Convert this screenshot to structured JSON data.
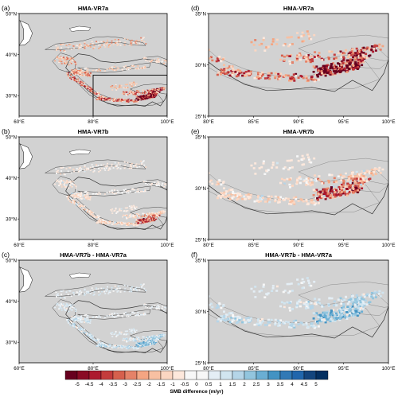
{
  "figure": {
    "colorbar": {
      "title": "SMB difference (m/yr)",
      "ticks": [
        "-5",
        "-4.5",
        "-4",
        "-3.5",
        "-3",
        "-2.5",
        "-2",
        "-1.5",
        "-1",
        "-0.5",
        "0",
        "0.5",
        "1",
        "1.5",
        "2",
        "2.5",
        "3",
        "3.5",
        "4",
        "4.5",
        "5"
      ],
      "colors": [
        "#67001f",
        "#8a0b25",
        "#ad1a2e",
        "#c43c3c",
        "#d6604d",
        "#e58268",
        "#f4a582",
        "#f8c0a2",
        "#fbd6c2",
        "#fde8dc",
        "#f7f7f7",
        "#f7f7f7",
        "#e4eef5",
        "#d1e5f0",
        "#b5d5e8",
        "#92c5de",
        "#6aaed3",
        "#4393c3",
        "#3179b6",
        "#2166ac",
        "#14457d",
        "#053061"
      ]
    },
    "panels": [
      {
        "id": "a",
        "letter": "(a)",
        "title": "HMA-VR7a",
        "extent": "wide",
        "lat_ticks": [
          "50°N",
          "40°N",
          "30°N"
        ],
        "lon_ticks": [
          "60°E",
          "80°E",
          "100°E"
        ],
        "inset_box": {
          "lon": [
            80,
            100
          ],
          "lat": [
            25,
            35
          ]
        },
        "smb_pattern": "vr7a"
      },
      {
        "id": "d",
        "letter": "(d)",
        "title": "HMA-VR7a",
        "extent": "zoom",
        "lat_ticks": [
          "35°N",
          "30°N",
          "25°N"
        ],
        "lon_ticks": [
          "80°E",
          "85°E",
          "90°E",
          "95°E",
          "100°E"
        ],
        "smb_pattern": "vr7a"
      },
      {
        "id": "b",
        "letter": "(b)",
        "title": "HMA-VR7b",
        "extent": "wide",
        "lat_ticks": [
          "50°N",
          "40°N",
          "30°N"
        ],
        "lon_ticks": [
          "60°E",
          "80°E",
          "100°E"
        ],
        "smb_pattern": "vr7b"
      },
      {
        "id": "e",
        "letter": "(e)",
        "title": "HMA-VR7b",
        "extent": "zoom",
        "lat_ticks": [
          "35°N",
          "30°N",
          "25°N"
        ],
        "lon_ticks": [
          "80°E",
          "85°E",
          "90°E",
          "95°E",
          "100°E"
        ],
        "smb_pattern": "vr7b"
      },
      {
        "id": "c",
        "letter": "(c)",
        "title": "HMA-VR7b - HMA-VR7a",
        "extent": "wide",
        "lat_ticks": [
          "50°N",
          "40°N",
          "30°N"
        ],
        "lon_ticks": [
          "60°E",
          "80°E",
          "100°E"
        ],
        "smb_pattern": "diff"
      },
      {
        "id": "f",
        "letter": "(f)",
        "title": "HMA-VR7b - HMA-VR7a",
        "extent": "zoom",
        "lat_ticks": [
          "35°N",
          "30°N",
          "25°N"
        ],
        "lon_ticks": [
          "80°E",
          "85°E",
          "90°E",
          "95°E",
          "100°E"
        ],
        "smb_pattern": "diff"
      }
    ]
  }
}
